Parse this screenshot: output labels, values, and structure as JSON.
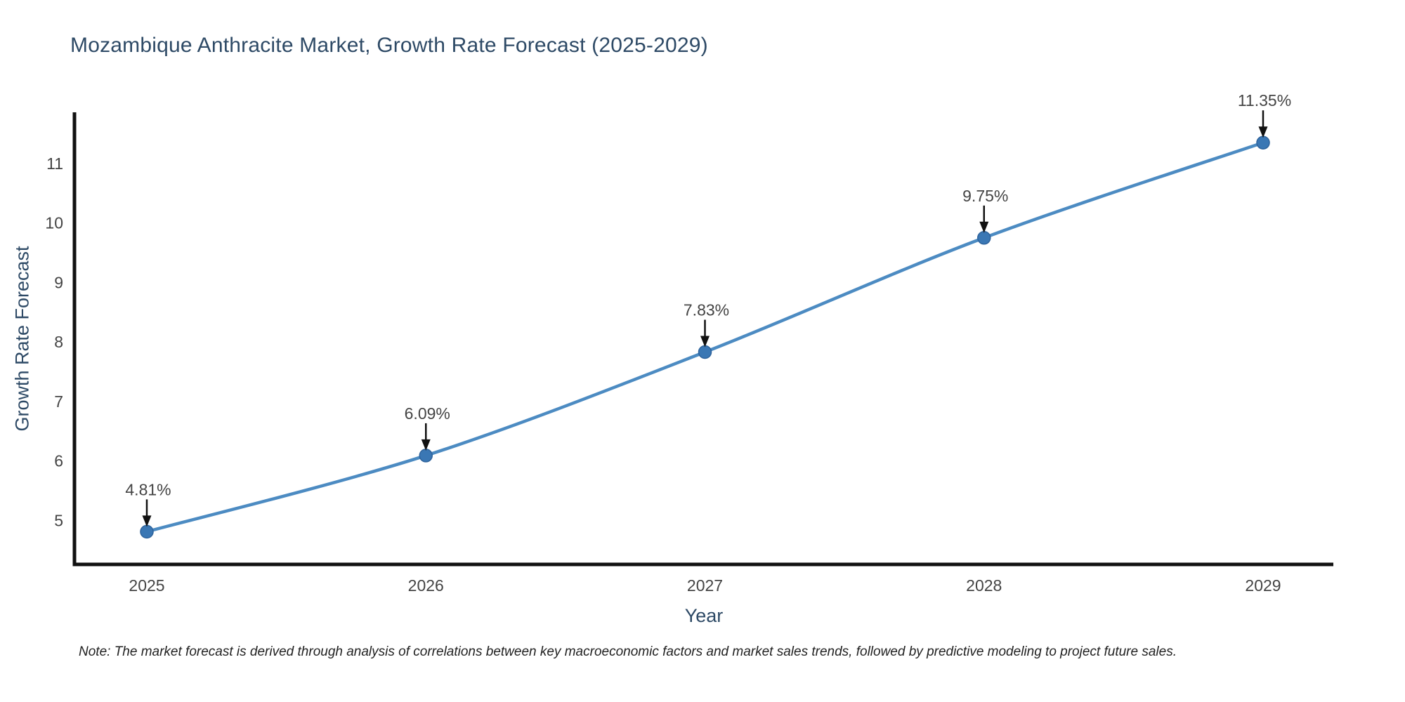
{
  "chart_data": {
    "type": "line",
    "title": "Mozambique Anthracite Market, Growth Rate Forecast (2025-2029)",
    "xlabel": "Year",
    "ylabel": "Growth Rate Forecast",
    "categories": [
      "2025",
      "2026",
      "2027",
      "2028",
      "2029"
    ],
    "values": [
      4.81,
      6.09,
      7.83,
      9.75,
      11.35
    ],
    "point_labels": [
      "4.81%",
      "6.09%",
      "7.83%",
      "9.75%",
      "11.35%"
    ],
    "yticks": [
      5,
      6,
      7,
      8,
      9,
      10,
      11
    ],
    "ylim": [
      4.26,
      11.86
    ],
    "grid": false,
    "legend_position": "none",
    "line_color": "#4c8bc2",
    "marker_color": "#3a77b4",
    "marker_edge_color": "#2e639c",
    "axis_color": "#111111",
    "tick_color": "#444444",
    "title_color": "#2e4a66",
    "annotation_color": "#444444",
    "arrow_color": "#111111"
  },
  "note": {
    "text": "Note: The market forecast is derived through analysis of correlations between key macroeconomic factors and market sales trends, followed by predictive modeling to project future sales."
  }
}
